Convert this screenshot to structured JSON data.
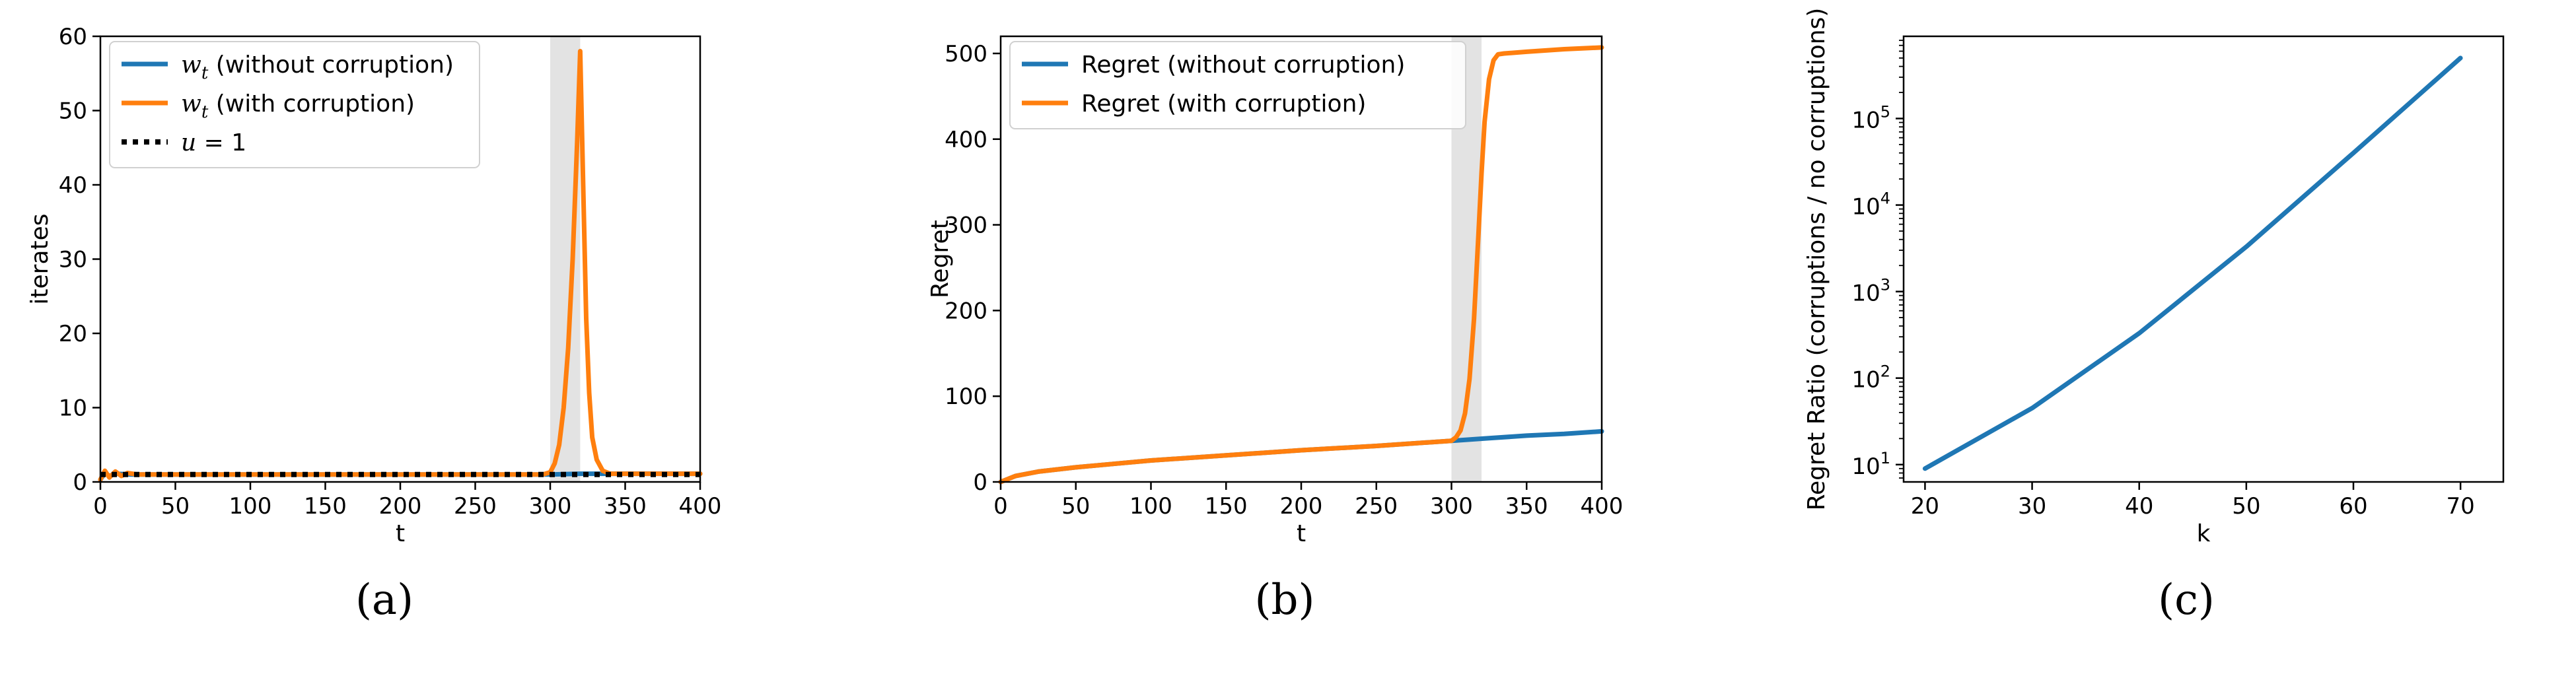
{
  "chart_data": [
    {
      "id": "a",
      "type": "line",
      "caption": "(a)",
      "xlabel": "t",
      "ylabel": "iterates",
      "xlim": [
        0,
        400
      ],
      "ylim": [
        0,
        60
      ],
      "xticks": [
        0,
        50,
        100,
        150,
        200,
        250,
        300,
        350,
        400
      ],
      "yticks": [
        0,
        10,
        20,
        30,
        40,
        50,
        60
      ],
      "shaded_region": [
        300,
        320
      ],
      "legend_position": "upper-left",
      "series": [
        {
          "name": "w_t (without corruption)",
          "legend_parts": [
            "w",
            "t",
            " (without corruption)"
          ],
          "color": "#1f77b4",
          "style": "solid",
          "points": [
            [
              0,
              0.3
            ],
            [
              3,
              1.2
            ],
            [
              6,
              0.8
            ],
            [
              10,
              1.1
            ],
            [
              20,
              1.0
            ],
            [
              50,
              1.0
            ],
            [
              100,
              1.0
            ],
            [
              200,
              1.0
            ],
            [
              300,
              1.0
            ],
            [
              320,
              1.1
            ],
            [
              400,
              1.1
            ]
          ]
        },
        {
          "name": "w_t (with corruption)",
          "legend_parts": [
            "w",
            "t",
            " (with corruption)"
          ],
          "color": "#ff7f0e",
          "style": "solid",
          "points": [
            [
              0,
              0.3
            ],
            [
              3,
              1.5
            ],
            [
              6,
              0.6
            ],
            [
              10,
              1.4
            ],
            [
              14,
              0.8
            ],
            [
              18,
              1.2
            ],
            [
              25,
              1.0
            ],
            [
              50,
              1.0
            ],
            [
              100,
              1.0
            ],
            [
              200,
              1.0
            ],
            [
              295,
              1.0
            ],
            [
              300,
              1.3
            ],
            [
              303,
              2.5
            ],
            [
              306,
              5
            ],
            [
              309,
              10
            ],
            [
              312,
              18
            ],
            [
              315,
              30
            ],
            [
              318,
              46
            ],
            [
              320,
              58
            ],
            [
              322,
              40
            ],
            [
              324,
              22
            ],
            [
              326,
              12
            ],
            [
              328,
              6
            ],
            [
              331,
              3
            ],
            [
              335,
              1.5
            ],
            [
              340,
              1.1
            ],
            [
              400,
              1.1
            ]
          ]
        },
        {
          "name": "u=1",
          "legend_parts": [
            "u",
            "",
            " = 1"
          ],
          "color": "#000000",
          "style": "dotted",
          "points": [
            [
              0,
              1
            ],
            [
              400,
              1
            ]
          ]
        }
      ]
    },
    {
      "id": "b",
      "type": "line",
      "caption": "(b)",
      "xlabel": "t",
      "ylabel": "Regret",
      "xlim": [
        0,
        400
      ],
      "ylim": [
        0,
        520
      ],
      "xticks": [
        0,
        50,
        100,
        150,
        200,
        250,
        300,
        350,
        400
      ],
      "yticks": [
        0,
        100,
        200,
        300,
        400,
        500
      ],
      "shaded_region": [
        300,
        320
      ],
      "legend_position": "upper-left",
      "series": [
        {
          "name": "Regret (without corruption)",
          "color": "#1f77b4",
          "style": "solid",
          "points": [
            [
              0,
              0
            ],
            [
              10,
              7
            ],
            [
              25,
              12
            ],
            [
              50,
              17
            ],
            [
              75,
              21
            ],
            [
              100,
              25
            ],
            [
              150,
              31
            ],
            [
              200,
              37
            ],
            [
              250,
              42
            ],
            [
              300,
              48
            ],
            [
              325,
              51
            ],
            [
              350,
              54
            ],
            [
              375,
              56
            ],
            [
              400,
              59
            ]
          ]
        },
        {
          "name": "Regret (with corruption)",
          "color": "#ff7f0e",
          "style": "solid",
          "points": [
            [
              0,
              0
            ],
            [
              10,
              7
            ],
            [
              25,
              12
            ],
            [
              50,
              17
            ],
            [
              75,
              21
            ],
            [
              100,
              25
            ],
            [
              150,
              31
            ],
            [
              200,
              37
            ],
            [
              250,
              42
            ],
            [
              300,
              48
            ],
            [
              303,
              52
            ],
            [
              306,
              60
            ],
            [
              309,
              80
            ],
            [
              312,
              120
            ],
            [
              315,
              190
            ],
            [
              318,
              290
            ],
            [
              320,
              360
            ],
            [
              322,
              420
            ],
            [
              325,
              470
            ],
            [
              328,
              492
            ],
            [
              331,
              499
            ],
            [
              335,
              500
            ],
            [
              350,
              502
            ],
            [
              375,
              505
            ],
            [
              400,
              507
            ]
          ]
        }
      ]
    },
    {
      "id": "c",
      "type": "line",
      "caption": "(c)",
      "xlabel": "k",
      "ylabel": "Regret Ratio (corruptions / no corruptions)",
      "yscale": "log",
      "xlim": [
        18,
        74
      ],
      "ylim_exponent": [
        0.8,
        5.95
      ],
      "xticks": [
        20,
        30,
        40,
        50,
        60,
        70
      ],
      "ytick_exponents": [
        1,
        2,
        3,
        4,
        5
      ],
      "ytick_base": "10",
      "series": [
        {
          "name": "",
          "color": "#1f77b4",
          "style": "solid",
          "points": [
            [
              20,
              9
            ],
            [
              30,
              45
            ],
            [
              40,
              330
            ],
            [
              50,
              3300
            ],
            [
              60,
              40000
            ],
            [
              70,
              500000
            ]
          ]
        }
      ]
    }
  ]
}
